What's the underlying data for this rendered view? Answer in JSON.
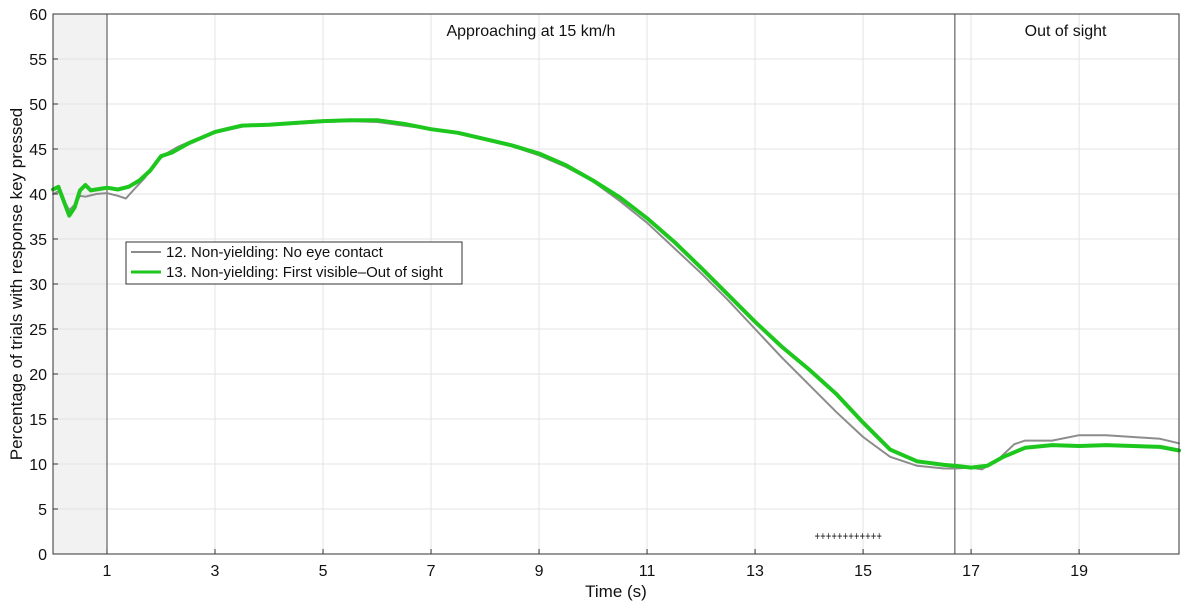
{
  "chart_data": {
    "type": "line",
    "xlabel": "Time (s)",
    "ylabel": "Percentage of trials with response key pressed",
    "xlim": [
      0,
      20.85
    ],
    "ylim": [
      0,
      60
    ],
    "x_ticks": [
      1,
      3,
      5,
      7,
      9,
      11,
      13,
      15,
      17,
      19
    ],
    "y_ticks": [
      0,
      5,
      10,
      15,
      20,
      25,
      30,
      35,
      40,
      45,
      50,
      55,
      60
    ],
    "grid": true,
    "legend_position": "left",
    "shaded_region": [
      0,
      1
    ],
    "vertical_lines": [
      1,
      16.7
    ],
    "region_labels": [
      {
        "text": "Approaching at 15 km/h",
        "x": 8.85
      },
      {
        "text": "Out of sight",
        "x": 18.75
      }
    ],
    "significance_marker": {
      "text": "++++++++++++",
      "x_start": 14.1,
      "x_end": 15.35,
      "y": 2
    },
    "series": [
      {
        "name": "12. Non-yielding: No eye contact",
        "color": "#8c8c8c",
        "points": [
          [
            0,
            40
          ],
          [
            0.1,
            40.3
          ],
          [
            0.2,
            39.3
          ],
          [
            0.3,
            38.2
          ],
          [
            0.4,
            38.8
          ],
          [
            0.5,
            39.8
          ],
          [
            0.6,
            39.7
          ],
          [
            0.8,
            40
          ],
          [
            1,
            40.1
          ],
          [
            1.2,
            39.8
          ],
          [
            1.35,
            39.5
          ],
          [
            1.5,
            40.5
          ],
          [
            1.7,
            41.8
          ],
          [
            1.9,
            43.5
          ],
          [
            2.1,
            44.5
          ],
          [
            2.3,
            45.2
          ],
          [
            2.6,
            46
          ],
          [
            3,
            46.8
          ],
          [
            3.3,
            47.2
          ],
          [
            3.6,
            47.6
          ],
          [
            4,
            47.7
          ],
          [
            4.5,
            47.8
          ],
          [
            5,
            48
          ],
          [
            5.5,
            48.1
          ],
          [
            6,
            48
          ],
          [
            6.5,
            47.6
          ],
          [
            7,
            47.2
          ],
          [
            7.5,
            46.7
          ],
          [
            8,
            46
          ],
          [
            8.5,
            45.3
          ],
          [
            9,
            44.3
          ],
          [
            9.5,
            43
          ],
          [
            10,
            41.4
          ],
          [
            10.5,
            39.2
          ],
          [
            11,
            36.8
          ],
          [
            11.5,
            34
          ],
          [
            12,
            31.2
          ],
          [
            12.5,
            28.2
          ],
          [
            13,
            25
          ],
          [
            13.5,
            21.8
          ],
          [
            14,
            18.8
          ],
          [
            14.5,
            15.8
          ],
          [
            15,
            13
          ],
          [
            15.5,
            10.8
          ],
          [
            16,
            9.8
          ],
          [
            16.5,
            9.5
          ],
          [
            16.7,
            9.5
          ],
          [
            17,
            9.6
          ],
          [
            17.2,
            9.4
          ],
          [
            17.5,
            10.5
          ],
          [
            17.8,
            12.2
          ],
          [
            18,
            12.6
          ],
          [
            18.5,
            12.6
          ],
          [
            19,
            13.2
          ],
          [
            19.5,
            13.2
          ],
          [
            20,
            13
          ],
          [
            20.5,
            12.8
          ],
          [
            20.85,
            12.3
          ]
        ]
      },
      {
        "name": "13. Non-yielding: First visible–Out of sight",
        "color": "#1ec71e",
        "points": [
          [
            0,
            40.5
          ],
          [
            0.1,
            40.8
          ],
          [
            0.2,
            39.2
          ],
          [
            0.3,
            37.6
          ],
          [
            0.4,
            38.5
          ],
          [
            0.5,
            40.4
          ],
          [
            0.6,
            41
          ],
          [
            0.7,
            40.4
          ],
          [
            0.9,
            40.6
          ],
          [
            1,
            40.7
          ],
          [
            1.2,
            40.5
          ],
          [
            1.4,
            40.8
          ],
          [
            1.6,
            41.5
          ],
          [
            1.8,
            42.6
          ],
          [
            2,
            44.2
          ],
          [
            2.2,
            44.6
          ],
          [
            2.5,
            45.6
          ],
          [
            3,
            46.9
          ],
          [
            3.5,
            47.6
          ],
          [
            4,
            47.7
          ],
          [
            4.5,
            47.9
          ],
          [
            5,
            48.1
          ],
          [
            5.5,
            48.2
          ],
          [
            6,
            48.2
          ],
          [
            6.5,
            47.8
          ],
          [
            7,
            47.2
          ],
          [
            7.5,
            46.8
          ],
          [
            8,
            46.1
          ],
          [
            8.5,
            45.4
          ],
          [
            9,
            44.5
          ],
          [
            9.5,
            43.2
          ],
          [
            10,
            41.5
          ],
          [
            10.5,
            39.6
          ],
          [
            11,
            37.3
          ],
          [
            11.5,
            34.7
          ],
          [
            12,
            31.8
          ],
          [
            12.5,
            28.8
          ],
          [
            13,
            25.8
          ],
          [
            13.5,
            23
          ],
          [
            14,
            20.5
          ],
          [
            14.5,
            17.8
          ],
          [
            15,
            14.6
          ],
          [
            15.5,
            11.6
          ],
          [
            16,
            10.3
          ],
          [
            16.5,
            9.9
          ],
          [
            16.7,
            9.8
          ],
          [
            17,
            9.6
          ],
          [
            17.3,
            9.8
          ],
          [
            17.6,
            10.8
          ],
          [
            18,
            11.8
          ],
          [
            18.5,
            12.1
          ],
          [
            19,
            12
          ],
          [
            19.5,
            12.1
          ],
          [
            20,
            12
          ],
          [
            20.5,
            11.9
          ],
          [
            20.85,
            11.5
          ]
        ]
      }
    ]
  }
}
